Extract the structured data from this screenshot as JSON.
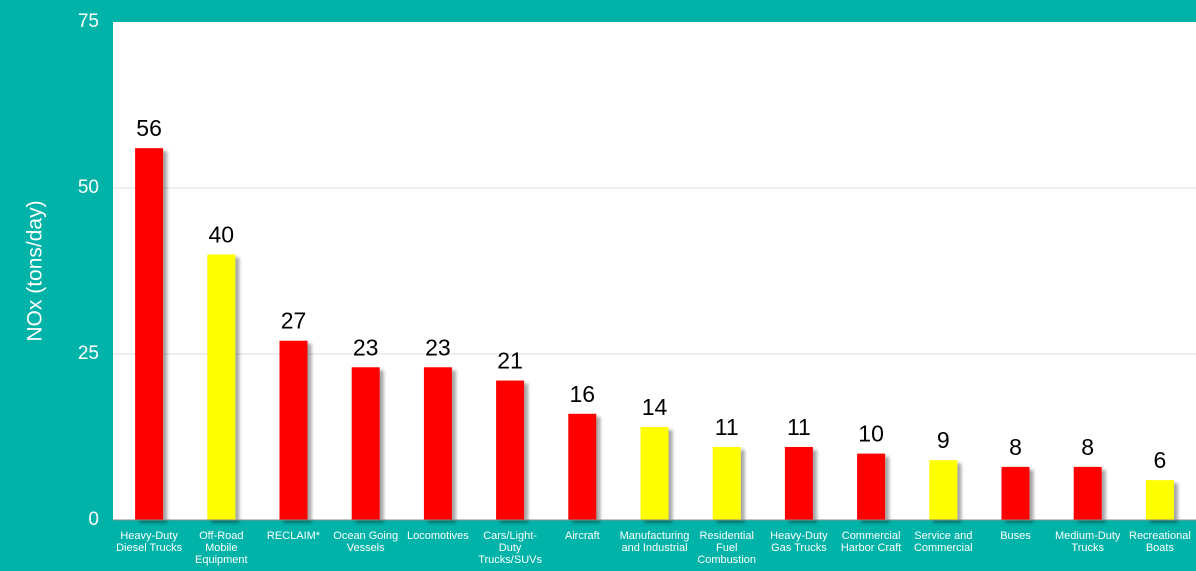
{
  "chart_data": {
    "type": "bar",
    "y_label": "NOx (tons/day)",
    "categories": [
      "Heavy-Duty Diesel Trucks",
      "Off-Road Mobile Equipment",
      "RECLAIM*",
      "Ocean Going Vessels",
      "Locomotives",
      "Cars/Light-Duty Trucks/SUVs",
      "Aircraft",
      "Manufacturing and Industrial",
      "Residential Fuel Combustion",
      "Heavy-Duty Gas Trucks",
      "Commercial Harbor Craft",
      "Service and Commercial",
      "Buses",
      "Medium-Duty Trucks",
      "Recreational Boats"
    ],
    "values": [
      56,
      40,
      27,
      23,
      23,
      21,
      16,
      14,
      11,
      11,
      10,
      9,
      8,
      8,
      6
    ],
    "colors": [
      "#ff0000",
      "#ffff00",
      "#ff0000",
      "#ff0000",
      "#ff0000",
      "#ff0000",
      "#ff0000",
      "#ffff00",
      "#ffff00",
      "#ff0000",
      "#ff0000",
      "#ffff00",
      "#ff0000",
      "#ff0000",
      "#ffff00"
    ],
    "ylim": [
      0,
      75
    ],
    "yticks": [
      0,
      25,
      50,
      75
    ],
    "grid": true
  }
}
